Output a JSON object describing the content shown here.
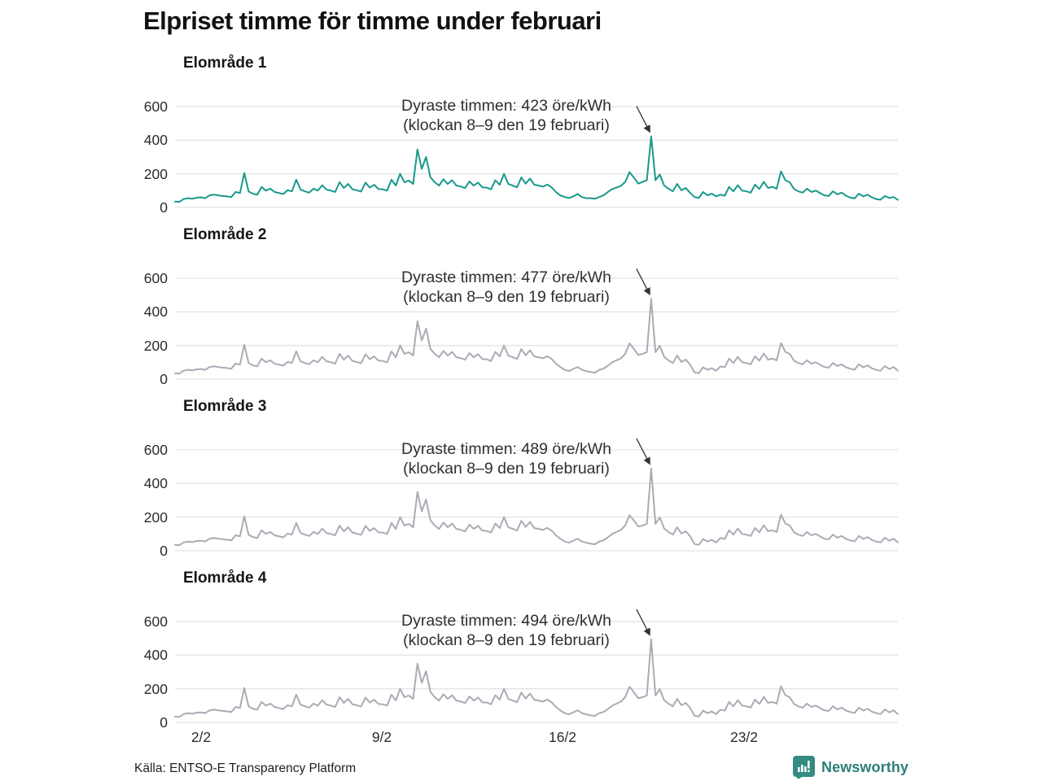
{
  "title": "Elpriset timme för timme under februari",
  "source": "Källa: ENTSO-E Transparency Platform",
  "brand": {
    "name": "Newsworthy",
    "icon": "bar-chart-speech-bubble-icon",
    "icon_color": "#338b82",
    "text_color": "#2c7f79"
  },
  "axes": {
    "yticks": [
      "600",
      "400",
      "200",
      "0"
    ],
    "xticks": [
      "2/2",
      "9/2",
      "16/2",
      "23/2"
    ]
  },
  "colors": {
    "highlight_line": "#18998b",
    "muted_line": "#a9acb5",
    "grid": "#e4e4e6",
    "arrow": "#333333"
  },
  "chart_data": [
    {
      "type": "line",
      "title": "Elområde 1",
      "unit": "öre/kWh",
      "color": "#18998b",
      "ylim": [
        0,
        700
      ],
      "yticks": [
        0,
        200,
        400,
        600
      ],
      "xtick_days": [
        2,
        9,
        16,
        23
      ],
      "x_start": "1/2 00:00",
      "x_end": "28/2 23:00",
      "points_per_day": 6,
      "annotation": {
        "line1": "Dyraste timmen: 423 öre/kWh",
        "line2": "(klockan 8–9 den 19 februari)",
        "peak_value": 423,
        "peak_index": 110
      },
      "values": [
        35,
        33,
        50,
        55,
        52,
        58,
        60,
        55,
        72,
        76,
        72,
        68,
        66,
        62,
        92,
        86,
        205,
        95,
        82,
        76,
        122,
        100,
        112,
        92,
        86,
        80,
        102,
        96,
        165,
        106,
        96,
        88,
        112,
        100,
        132,
        106,
        100,
        92,
        150,
        116,
        140,
        108,
        102,
        95,
        148,
        118,
        135,
        110,
        108,
        100,
        165,
        130,
        200,
        150,
        160,
        140,
        345,
        230,
        300,
        180,
        150,
        130,
        168,
        140,
        162,
        130,
        125,
        115,
        155,
        130,
        148,
        120,
        118,
        108,
        162,
        135,
        200,
        140,
        130,
        120,
        178,
        142,
        172,
        135,
        130,
        124,
        136,
        120,
        92,
        72,
        62,
        56,
        66,
        80,
        62,
        55,
        55,
        52,
        62,
        72,
        92,
        110,
        118,
        128,
        152,
        210,
        178,
        142,
        152,
        162,
        423,
        162,
        196,
        130,
        112,
        96,
        140,
        102,
        116,
        86,
        62,
        56,
        92,
        72,
        82,
        66,
        76,
        70,
        122,
        96,
        132,
        100,
        96,
        88,
        136,
        110,
        152,
        116,
        122,
        112,
        215,
        162,
        150,
        110,
        96,
        88,
        112,
        92,
        100,
        86,
        72,
        68,
        96,
        78,
        88,
        70,
        58,
        54,
        82,
        66,
        76,
        60,
        50,
        46,
        68,
        56,
        62,
        45
      ]
    },
    {
      "type": "line",
      "title": "Elområde 2",
      "unit": "öre/kWh",
      "color": "#a9acb5",
      "ylim": [
        0,
        700
      ],
      "yticks": [
        0,
        200,
        400,
        600
      ],
      "xtick_days": [
        2,
        9,
        16,
        23
      ],
      "x_start": "1/2 00:00",
      "x_end": "28/2 23:00",
      "points_per_day": 6,
      "annotation": {
        "line1": "Dyraste timmen: 477 öre/kWh",
        "line2": "(klockan 8–9 den 19 februari)",
        "peak_value": 477,
        "peak_index": 110
      },
      "values": [
        35,
        33,
        50,
        55,
        52,
        58,
        60,
        55,
        72,
        76,
        72,
        68,
        66,
        62,
        92,
        86,
        205,
        95,
        82,
        76,
        122,
        100,
        112,
        92,
        86,
        80,
        102,
        96,
        165,
        106,
        96,
        88,
        112,
        100,
        132,
        106,
        100,
        92,
        150,
        116,
        140,
        108,
        102,
        95,
        148,
        118,
        135,
        110,
        108,
        100,
        165,
        130,
        200,
        150,
        160,
        140,
        345,
        230,
        300,
        180,
        150,
        130,
        168,
        140,
        162,
        130,
        125,
        115,
        155,
        130,
        148,
        120,
        118,
        108,
        162,
        135,
        200,
        140,
        130,
        120,
        178,
        142,
        172,
        135,
        130,
        124,
        136,
        120,
        92,
        72,
        55,
        48,
        60,
        72,
        55,
        48,
        42,
        38,
        55,
        62,
        80,
        100,
        112,
        124,
        150,
        212,
        180,
        144,
        150,
        160,
        477,
        160,
        198,
        132,
        112,
        96,
        140,
        102,
        116,
        86,
        40,
        35,
        70,
        55,
        65,
        50,
        76,
        70,
        122,
        96,
        132,
        100,
        96,
        88,
        136,
        110,
        152,
        116,
        122,
        112,
        215,
        162,
        150,
        110,
        96,
        88,
        112,
        92,
        100,
        86,
        72,
        68,
        96,
        78,
        88,
        70,
        62,
        56,
        88,
        70,
        82,
        64,
        55,
        50,
        78,
        60,
        72,
        50
      ]
    },
    {
      "type": "line",
      "title": "Elområde 3",
      "unit": "öre/kWh",
      "color": "#a9acb5",
      "ylim": [
        0,
        700
      ],
      "yticks": [
        0,
        200,
        400,
        600
      ],
      "xtick_days": [
        2,
        9,
        16,
        23
      ],
      "x_start": "1/2 00:00",
      "x_end": "28/2 23:00",
      "points_per_day": 6,
      "annotation": {
        "line1": "Dyraste timmen: 489 öre/kWh",
        "line2": "(klockan 8–9 den 19 februari)",
        "peak_value": 489,
        "peak_index": 110
      },
      "values": [
        35,
        33,
        50,
        55,
        52,
        58,
        60,
        55,
        72,
        76,
        72,
        68,
        66,
        62,
        92,
        86,
        205,
        95,
        82,
        76,
        122,
        100,
        112,
        92,
        86,
        80,
        102,
        96,
        165,
        106,
        96,
        88,
        112,
        100,
        132,
        106,
        100,
        92,
        150,
        116,
        140,
        108,
        102,
        95,
        148,
        118,
        135,
        110,
        108,
        100,
        165,
        130,
        200,
        150,
        160,
        140,
        350,
        235,
        305,
        182,
        150,
        130,
        168,
        140,
        162,
        130,
        125,
        115,
        155,
        130,
        148,
        120,
        118,
        108,
        162,
        135,
        200,
        140,
        130,
        120,
        178,
        142,
        172,
        135,
        130,
        124,
        136,
        120,
        92,
        72,
        55,
        48,
        60,
        72,
        55,
        48,
        42,
        38,
        55,
        62,
        80,
        100,
        112,
        124,
        150,
        212,
        180,
        144,
        150,
        160,
        489,
        160,
        198,
        132,
        112,
        96,
        140,
        102,
        116,
        86,
        40,
        35,
        70,
        55,
        65,
        50,
        76,
        70,
        122,
        96,
        132,
        100,
        96,
        88,
        136,
        110,
        152,
        116,
        122,
        112,
        215,
        162,
        150,
        110,
        96,
        88,
        112,
        92,
        100,
        86,
        72,
        68,
        96,
        78,
        88,
        70,
        62,
        56,
        88,
        70,
        82,
        64,
        55,
        50,
        78,
        60,
        72,
        50
      ]
    },
    {
      "type": "line",
      "title": "Elområde 4",
      "unit": "öre/kWh",
      "color": "#a9acb5",
      "ylim": [
        0,
        700
      ],
      "yticks": [
        0,
        200,
        400,
        600
      ],
      "xtick_days": [
        2,
        9,
        16,
        23
      ],
      "x_start": "1/2 00:00",
      "x_end": "28/2 23:00",
      "points_per_day": 6,
      "annotation": {
        "line1": "Dyraste timmen: 494 öre/kWh",
        "line2": "(klockan 8–9 den 19 februari)",
        "peak_value": 494,
        "peak_index": 110
      },
      "values": [
        35,
        33,
        50,
        55,
        52,
        58,
        60,
        55,
        72,
        76,
        72,
        68,
        66,
        62,
        92,
        86,
        205,
        95,
        82,
        76,
        122,
        100,
        112,
        92,
        86,
        80,
        102,
        96,
        165,
        106,
        96,
        88,
        112,
        100,
        132,
        106,
        100,
        92,
        150,
        116,
        140,
        108,
        102,
        95,
        148,
        118,
        135,
        110,
        108,
        100,
        165,
        130,
        200,
        150,
        160,
        140,
        350,
        235,
        305,
        182,
        150,
        130,
        168,
        140,
        162,
        130,
        125,
        115,
        155,
        130,
        148,
        120,
        118,
        108,
        162,
        135,
        200,
        140,
        130,
        120,
        178,
        142,
        172,
        135,
        130,
        124,
        136,
        120,
        92,
        72,
        55,
        48,
        60,
        72,
        55,
        48,
        42,
        38,
        55,
        62,
        80,
        100,
        112,
        124,
        150,
        212,
        180,
        144,
        150,
        160,
        494,
        160,
        198,
        132,
        112,
        96,
        140,
        102,
        116,
        86,
        40,
        35,
        70,
        55,
        65,
        50,
        76,
        70,
        122,
        96,
        132,
        100,
        96,
        88,
        136,
        110,
        152,
        116,
        122,
        112,
        215,
        162,
        150,
        110,
        96,
        88,
        112,
        92,
        100,
        86,
        72,
        68,
        96,
        78,
        88,
        70,
        62,
        56,
        88,
        70,
        82,
        64,
        55,
        50,
        78,
        60,
        72,
        50
      ]
    }
  ],
  "layout": {
    "panel_title_tops": [
      66,
      277,
      488,
      699
    ],
    "svg_tops": [
      121,
      332,
      543,
      754
    ],
    "xlabel_centers": [
      247,
      469,
      691,
      914
    ]
  }
}
